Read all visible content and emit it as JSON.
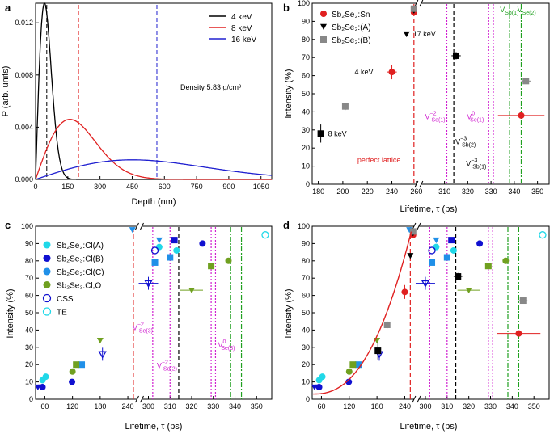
{
  "chart_data": [
    {
      "panel": "a",
      "type": "line",
      "xlabel": "Depth (nm)",
      "ylabel": "P (arb. units)",
      "xlim": [
        0,
        1100
      ],
      "ylim": [
        0,
        0.0135
      ],
      "xticks": [
        "0",
        "150",
        "300",
        "450",
        "600",
        "750",
        "900",
        "1050"
      ],
      "xtick_values": [
        0,
        150,
        300,
        450,
        600,
        750,
        900,
        1050
      ],
      "yticks": [
        "0.000",
        "0.004",
        "0.008",
        "0.012"
      ],
      "ytick_values": [
        0,
        0.004,
        0.008,
        0.012
      ],
      "annotation": "Density 5.83 g/cm³",
      "series": [
        {
          "name": "4 keV",
          "color": "#000000",
          "mean": 52,
          "peak": 0.0135,
          "shape_m": 2
        },
        {
          "name": "8 keV",
          "color": "#e02020",
          "mean": 200,
          "peak": 0.0046,
          "shape_m": 2
        },
        {
          "name": "16 keV",
          "color": "#2020d0",
          "mean": 565,
          "peak": 0.0015,
          "shape_m": 2
        }
      ]
    },
    {
      "panel": "b",
      "type": "scatter",
      "xlabel": "Lifetime, τ (ps)",
      "ylabel": "Intensity (%)",
      "ylim": [
        0,
        100
      ],
      "xticks_left": [
        "180",
        "200",
        "220",
        "240",
        "260"
      ],
      "xticks_right": [
        "310",
        "320",
        "330",
        "340",
        "350"
      ],
      "yticks": [
        "0",
        "10",
        "20",
        "30",
        "40",
        "50",
        "60",
        "70",
        "80",
        "90",
        "100"
      ],
      "legend": [
        "Sb₂Se₃:Sn",
        "Sb₂Se₃:(A)",
        "Sb₂Se₃:(B)"
      ],
      "annotations": {
        "kev8": "8 keV",
        "kev4": "4 keV",
        "kev17": "17 keV",
        "perfect": "perfect lattice",
        "vse1m": "V",
        "vse1m_sub": "Se(1)",
        "vse1m_sup": "−2",
        "vse1z": "V",
        "vse1z_sub": "Se(1)",
        "vse1z_sup": "0",
        "vsb2": "V",
        "vsb2_sub": "Sb(2)",
        "vsb2_sup": "−3",
        "vsb1": "V",
        "vsb1_sub": "Sb(1)",
        "vsb1_sup": "−3",
        "vgreen1": "V",
        "vgreen1_sub": "Sb(1)",
        "vgreen2": "V",
        "vgreen2_sub": "Se(2)"
      },
      "points": [
        {
          "series": "Sn",
          "x": 240,
          "y": 62,
          "xerr": 4,
          "yerr": 4,
          "color": "#e02020"
        },
        {
          "series": "Sn",
          "x": 343,
          "y": 38,
          "xerr": 10,
          "yerr": 0,
          "color": "#e02020"
        },
        {
          "series": "Sn",
          "x": 258,
          "y": 95,
          "xerr": 0,
          "yerr": 0,
          "color": "#e02020"
        },
        {
          "series": "A",
          "x": 252,
          "y": 83,
          "xerr": 0,
          "yerr": 0,
          "color": "#000000"
        },
        {
          "series": "A",
          "x": 258,
          "y": 96,
          "xerr": 0,
          "yerr": 0,
          "color": "#000000"
        },
        {
          "series": "sq",
          "x": 182,
          "y": 28,
          "xerr": 2,
          "yerr": 5,
          "color": "#000000"
        },
        {
          "series": "sq",
          "x": 315,
          "y": 71,
          "xerr": 2,
          "yerr": 2,
          "color": "#000000"
        },
        {
          "series": "B",
          "x": 202,
          "y": 43,
          "xerr": 2,
          "yerr": 2,
          "color": "#888888"
        },
        {
          "series": "B",
          "x": 345,
          "y": 57,
          "xerr": 2,
          "yerr": 1,
          "color": "#888888"
        },
        {
          "series": "B",
          "x": 258,
          "y": 97,
          "xerr": 0,
          "yerr": 0,
          "color": "#888888"
        }
      ]
    },
    {
      "panel": "c",
      "type": "scatter",
      "xlabel": "Lifetime, τ (ps)",
      "ylabel": "Intensity (%)",
      "ylim": [
        0,
        100
      ],
      "xticks_left": [
        "60",
        "120",
        "180",
        "240"
      ],
      "xticks_right": [
        "300",
        "310",
        "320",
        "330",
        "340",
        "350"
      ],
      "yticks": [
        "0",
        "10",
        "20",
        "30",
        "40",
        "50",
        "60",
        "70",
        "80",
        "90",
        "100"
      ],
      "legend": [
        "Sb₂Se₃:Cl(A)",
        "Sb₂Se₃:Cl(B)",
        "Sb₂Se₃:Cl(C)",
        "Sb₂Se₃:Cl,O",
        "CSS",
        "TE"
      ],
      "annotations": {
        "vse3m": "V",
        "vse3m_sub": "Se(3)",
        "vse3m_sup": "−2",
        "vse2m": "V",
        "vse2m_sub": "Se(2)",
        "vse2m_sup": "−2",
        "vse3z": "V",
        "vse3z_sub": "Se(3)",
        "vse3z_sup": "0"
      },
      "points": [
        {
          "series": "ClA",
          "x": 58,
          "y": 10,
          "color": "#20d8e8"
        },
        {
          "series": "ClA",
          "x": 65,
          "y": 12,
          "color": "#20d8e8"
        },
        {
          "series": "ClA",
          "x": 305,
          "y": 88,
          "color": "#20d8e8"
        },
        {
          "series": "ClA",
          "x": 313,
          "y": 86,
          "color": "#20d8e8"
        },
        {
          "series": "ClB",
          "x": 54,
          "y": 7,
          "color": "#1010d0"
        },
        {
          "series": "ClB",
          "x": 118,
          "y": 10,
          "color": "#1010d0"
        },
        {
          "series": "ClB",
          "x": 325,
          "y": 90,
          "color": "#1010d0"
        },
        {
          "series": "ClC",
          "x": 303,
          "y": 79,
          "color": "#2090e8"
        },
        {
          "series": "ClC",
          "x": 310,
          "y": 82,
          "color": "#2090e8"
        },
        {
          "series": "ClO",
          "x": 120,
          "y": 16,
          "color": "#70a020"
        },
        {
          "series": "ClO",
          "x": 337,
          "y": 80,
          "color": "#70a020"
        },
        {
          "series": "CSS",
          "x": 303,
          "y": 86,
          "color": "#1010d0"
        },
        {
          "series": "TE",
          "x": 354,
          "y": 95,
          "color": "#20d8e8"
        }
      ]
    },
    {
      "panel": "d",
      "type": "scatter",
      "xlabel": "Lifetime, τ (ps)",
      "ylabel": "Intensity (%)",
      "ylim": [
        0,
        100
      ],
      "xticks_left": [
        "60",
        "120",
        "180",
        "240"
      ],
      "xticks_right": [
        "300",
        "310",
        "320",
        "330",
        "340",
        "350"
      ],
      "yticks": [
        "0",
        "10",
        "20",
        "30",
        "40",
        "50",
        "60",
        "70",
        "80",
        "90",
        "100"
      ]
    }
  ]
}
